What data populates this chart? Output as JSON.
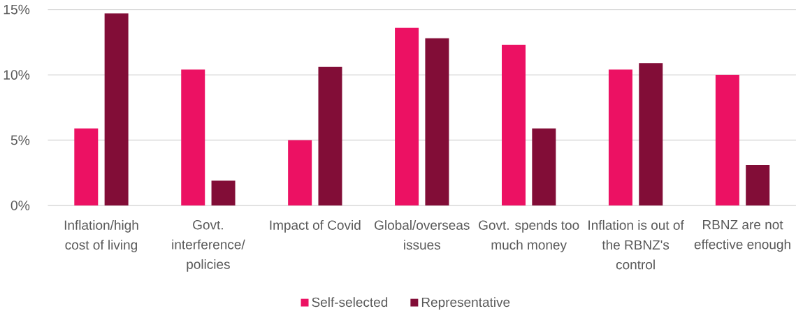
{
  "chart_data": {
    "type": "bar",
    "categories": [
      "Inflation/high cost of living",
      "Govt. interference/ policies",
      "Impact of Covid",
      "Global/overseas issues",
      "Govt. spends too much money",
      "Inflation is out of the RBNZ's control",
      "RBNZ are not effective enough"
    ],
    "series": [
      {
        "name": "Self-selected",
        "color": "#ec1163",
        "values": [
          5.9,
          10.4,
          5.0,
          13.6,
          12.3,
          10.4,
          10.0
        ]
      },
      {
        "name": "Representative",
        "color": "#820d37",
        "values": [
          14.7,
          1.9,
          10.6,
          12.8,
          5.9,
          10.9,
          3.1
        ]
      }
    ],
    "ylim": [
      0,
      15
    ],
    "yticks": [
      {
        "value": 0,
        "label": "0%"
      },
      {
        "value": 5,
        "label": "5%"
      },
      {
        "value": 10,
        "label": "10%"
      },
      {
        "value": 15,
        "label": "15%"
      }
    ],
    "grid": "y",
    "legend": "bottom"
  }
}
